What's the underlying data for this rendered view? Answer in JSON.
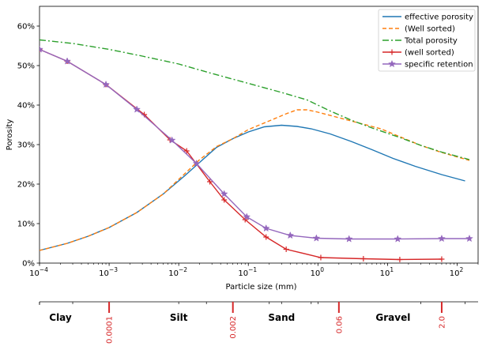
{
  "chart_data": {
    "type": "line",
    "xscale": "log",
    "xlim": [
      0.0001,
      200
    ],
    "ylim": [
      0,
      0.65
    ],
    "xlabel": "Particle size (mm)",
    "ylabel": "Porosity",
    "grid": false,
    "legend_position": "top-right",
    "xticks": [
      {
        "value": 0.0001,
        "base": "10",
        "exp": "−4"
      },
      {
        "value": 0.001,
        "base": "10",
        "exp": "−3"
      },
      {
        "value": 0.01,
        "base": "10",
        "exp": "−2"
      },
      {
        "value": 0.1,
        "base": "10",
        "exp": "−1"
      },
      {
        "value": 1,
        "base": "10",
        "exp": "0"
      },
      {
        "value": 10,
        "base": "10",
        "exp": "1"
      },
      {
        "value": 100,
        "base": "10",
        "exp": "2"
      }
    ],
    "yticks": [
      {
        "value": 0.0,
        "label": "0%"
      },
      {
        "value": 0.1,
        "label": "10%"
      },
      {
        "value": 0.2,
        "label": "20%"
      },
      {
        "value": 0.3,
        "label": "30%"
      },
      {
        "value": 0.4,
        "label": "40%"
      },
      {
        "value": 0.5,
        "label": "50%"
      },
      {
        "value": 0.6,
        "label": "60%"
      }
    ],
    "series": [
      {
        "name": "effective porosity",
        "color": "#1f77b4",
        "dash": "",
        "marker": "none",
        "x": [
          0.0001,
          0.00025,
          0.0005,
          0.001,
          0.0025,
          0.006,
          0.012,
          0.02,
          0.035,
          0.06,
          0.1,
          0.17,
          0.3,
          0.5,
          0.8,
          1.5,
          3,
          6,
          12,
          25,
          60,
          130
        ],
        "y": [
          0.032,
          0.05,
          0.068,
          0.09,
          0.128,
          0.175,
          0.22,
          0.255,
          0.293,
          0.315,
          0.332,
          0.345,
          0.349,
          0.346,
          0.34,
          0.327,
          0.308,
          0.287,
          0.265,
          0.245,
          0.224,
          0.208
        ]
      },
      {
        "name": "(Well sorted)",
        "color": "#ff7f0e",
        "dash": "5,3",
        "marker": "none",
        "x": [
          0.0001,
          0.00025,
          0.0005,
          0.001,
          0.0025,
          0.006,
          0.012,
          0.02,
          0.035,
          0.06,
          0.1,
          0.2,
          0.35,
          0.5,
          0.7,
          1.0,
          2.0,
          4.0,
          8.0,
          15,
          30,
          60,
          150
        ],
        "y": [
          0.032,
          0.05,
          0.068,
          0.09,
          0.128,
          0.175,
          0.225,
          0.262,
          0.295,
          0.315,
          0.338,
          0.36,
          0.378,
          0.388,
          0.388,
          0.382,
          0.368,
          0.354,
          0.34,
          0.32,
          0.298,
          0.28,
          0.26
        ]
      },
      {
        "name": "Total porosity",
        "color": "#2ca02c",
        "dash": "8,3,2,3",
        "marker": "none",
        "x": [
          0.0001,
          0.0003,
          0.001,
          0.003,
          0.01,
          0.03,
          0.1,
          0.3,
          0.7,
          1.5,
          3,
          6,
          15,
          30,
          60,
          150
        ],
        "y": [
          0.565,
          0.556,
          0.541,
          0.524,
          0.504,
          0.48,
          0.455,
          0.432,
          0.413,
          0.385,
          0.362,
          0.342,
          0.318,
          0.298,
          0.281,
          0.262
        ]
      },
      {
        "name": "(well sorted)",
        "color": "#d62728",
        "dash": "",
        "marker": "plus",
        "x": [
          0.0001,
          0.00025,
          0.0009,
          0.0032,
          0.0075,
          0.013,
          0.028,
          0.045,
          0.09,
          0.18,
          0.35,
          1.1,
          4.5,
          15,
          60
        ],
        "y": [
          0.541,
          0.511,
          0.452,
          0.376,
          0.312,
          0.284,
          0.206,
          0.16,
          0.11,
          0.066,
          0.035,
          0.014,
          0.011,
          0.009,
          0.01
        ]
      },
      {
        "name": "specific retention",
        "color": "#9467bd",
        "dash": "",
        "marker": "star",
        "x": [
          0.0001,
          0.00025,
          0.0009,
          0.0025,
          0.008,
          0.018,
          0.045,
          0.095,
          0.18,
          0.4,
          0.95,
          2.8,
          14,
          60,
          150
        ],
        "y": [
          0.541,
          0.511,
          0.452,
          0.389,
          0.311,
          0.252,
          0.175,
          0.117,
          0.088,
          0.07,
          0.063,
          0.061,
          0.061,
          0.062,
          0.062
        ]
      }
    ]
  },
  "classification": {
    "classes": [
      {
        "label": "Clay",
        "pos": 0.0002
      },
      {
        "label": "Silt",
        "pos": 0.01
      },
      {
        "label": "Sand",
        "pos": 0.3
      },
      {
        "label": "Gravel",
        "pos": 12
      }
    ],
    "boundaries": [
      {
        "label": "0.0001",
        "pos": 0.001
      },
      {
        "label": "0.002",
        "pos": 0.06
      },
      {
        "label": "0.06",
        "pos": 2
      },
      {
        "label": "2.0",
        "pos": 60
      }
    ],
    "minor_ticks": [
      0.0001,
      0.0003,
      0.01,
      0.025,
      0.2,
      0.3,
      1.0,
      0.8,
      30,
      130
    ],
    "boundary_color": "#d62728"
  }
}
